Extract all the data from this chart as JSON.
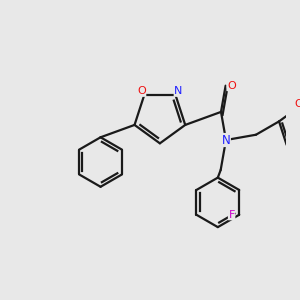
{
  "background_color": "#e8e8e8",
  "bond_color": "#1a1a1a",
  "N_color": "#2020ff",
  "O_color": "#ee1111",
  "F_color": "#cc00cc",
  "lw": 1.6,
  "dbo": 3.5,
  "figsize": [
    3.0,
    3.0
  ],
  "dpi": 100,
  "xlim": [
    0,
    300
  ],
  "ylim": [
    0,
    300
  ]
}
